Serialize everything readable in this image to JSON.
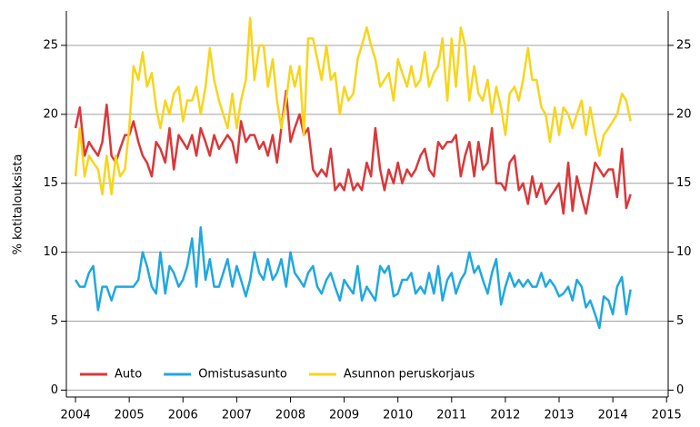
{
  "chart_data": {
    "type": "line",
    "y_label": "% kotitalouksista",
    "x": [
      2004.0,
      2004.08,
      2004.17,
      2004.25,
      2004.33,
      2004.42,
      2004.5,
      2004.58,
      2004.67,
      2004.75,
      2004.83,
      2004.92,
      2005.0,
      2005.08,
      2005.17,
      2005.25,
      2005.33,
      2005.42,
      2005.5,
      2005.58,
      2005.67,
      2005.75,
      2005.83,
      2005.92,
      2006.0,
      2006.08,
      2006.17,
      2006.25,
      2006.33,
      2006.42,
      2006.5,
      2006.58,
      2006.67,
      2006.75,
      2006.83,
      2006.92,
      2007.0,
      2007.08,
      2007.17,
      2007.25,
      2007.33,
      2007.42,
      2007.5,
      2007.58,
      2007.67,
      2007.75,
      2007.83,
      2007.92,
      2008.0,
      2008.08,
      2008.17,
      2008.25,
      2008.33,
      2008.42,
      2008.5,
      2008.58,
      2008.67,
      2008.75,
      2008.83,
      2008.92,
      2009.0,
      2009.08,
      2009.17,
      2009.25,
      2009.33,
      2009.42,
      2009.5,
      2009.58,
      2009.67,
      2009.75,
      2009.83,
      2009.92,
      2010.0,
      2010.08,
      2010.17,
      2010.25,
      2010.33,
      2010.42,
      2010.5,
      2010.58,
      2010.67,
      2010.75,
      2010.83,
      2010.92,
      2011.0,
      2011.08,
      2011.17,
      2011.25,
      2011.33,
      2011.42,
      2011.5,
      2011.58,
      2011.67,
      2011.75,
      2011.83,
      2011.92,
      2012.0,
      2012.08,
      2012.17,
      2012.25,
      2012.33,
      2012.42,
      2012.5,
      2012.58,
      2012.67,
      2012.75,
      2012.83,
      2012.92,
      2013.0,
      2013.08,
      2013.17,
      2013.25,
      2013.33,
      2013.42,
      2013.5,
      2013.58,
      2013.67,
      2013.75,
      2013.83,
      2013.92,
      2014.0,
      2014.08,
      2014.17,
      2014.25,
      2014.33
    ],
    "series": [
      {
        "name": "Auto",
        "color": "#d9383a",
        "values": [
          19,
          20.5,
          17,
          18,
          17.5,
          17,
          18,
          20.7,
          17,
          16.5,
          17.5,
          18.5,
          18.5,
          19.5,
          18,
          17,
          16.5,
          15.5,
          18,
          17.5,
          16.5,
          19,
          16,
          18.5,
          18,
          17.5,
          18.5,
          17,
          19,
          18,
          17,
          18.5,
          17.5,
          18,
          18.5,
          18,
          16.5,
          19.5,
          18,
          18.5,
          18.5,
          17.5,
          18,
          17,
          18.5,
          16.5,
          19,
          21.7,
          18,
          19,
          20,
          18.5,
          19,
          16,
          15.5,
          16,
          15.5,
          17.5,
          14.5,
          15,
          14.5,
          16,
          14.5,
          15,
          14.5,
          16.5,
          15.5,
          19,
          16,
          14.5,
          16,
          15,
          16.5,
          15,
          16,
          15.5,
          16,
          17,
          17.5,
          16,
          15.5,
          18,
          17.5,
          18,
          18,
          18.5,
          15.5,
          17,
          18,
          15.5,
          18,
          16,
          16.5,
          19,
          15,
          15,
          14.5,
          16.5,
          17,
          14.5,
          15,
          13.5,
          15.5,
          14,
          15,
          13.5,
          14,
          14.5,
          15,
          12.8,
          16.5,
          13,
          15.5,
          14,
          12.8,
          14.5,
          16.5,
          16,
          15.5,
          16,
          16,
          14,
          17.5,
          13.2,
          14.2
        ]
      },
      {
        "name": "Omistusasunto",
        "color": "#1fa8e0",
        "values": [
          8,
          7.5,
          7.5,
          8.5,
          9,
          5.8,
          7.5,
          7.5,
          6.5,
          7.5,
          7.5,
          7.5,
          7.5,
          7.5,
          8,
          10,
          9,
          7.5,
          7,
          10,
          7,
          9,
          8.5,
          7.5,
          8,
          9,
          11,
          7.5,
          11.8,
          8,
          9.5,
          7.5,
          7.5,
          8.5,
          9.5,
          7.5,
          9,
          8,
          6.8,
          8,
          10,
          8.5,
          8,
          9.5,
          8,
          8.5,
          9.5,
          7.5,
          10,
          8.5,
          8,
          7.5,
          8.5,
          9,
          7.5,
          7,
          8,
          8.5,
          7.5,
          6.5,
          8,
          7.5,
          7,
          9,
          6.5,
          7.5,
          7,
          6.5,
          9,
          8.5,
          9,
          6.8,
          7,
          8,
          8,
          8.5,
          7,
          7.5,
          7,
          8.5,
          7,
          9,
          6.5,
          8,
          8.5,
          7,
          8,
          8.5,
          10,
          8.5,
          9,
          8,
          7,
          8.5,
          9.5,
          6.2,
          7.5,
          8.5,
          7.5,
          8,
          7.5,
          8,
          7.5,
          7.5,
          8.5,
          7.5,
          8,
          7.5,
          6.8,
          7,
          7.5,
          6.5,
          8,
          7.5,
          6,
          6.5,
          5.5,
          4.5,
          6.8,
          6.5,
          5.5,
          7.5,
          8.2,
          5.5,
          7.3
        ]
      },
      {
        "name": "Asunnon peruskorjaus",
        "color": "#f7d51d",
        "values": [
          15.5,
          19,
          15.5,
          17,
          16.5,
          16,
          14.2,
          17,
          14.2,
          17,
          15.5,
          16,
          19,
          23.5,
          22.5,
          24.5,
          22,
          23,
          20.5,
          19,
          21,
          20,
          21.5,
          22,
          19.5,
          21,
          21,
          22,
          20,
          22,
          24.8,
          22.5,
          21,
          20,
          19,
          21.5,
          19,
          21,
          22.5,
          27,
          22.5,
          25,
          25,
          22,
          24,
          21,
          19,
          21,
          23.5,
          22,
          23.5,
          18.5,
          25.5,
          25.5,
          24,
          22.5,
          25,
          22.5,
          23,
          20,
          22,
          21,
          21.5,
          24,
          25,
          26.3,
          25,
          24,
          22,
          22.5,
          23,
          21,
          24,
          23,
          22,
          23.5,
          22,
          22.5,
          24.5,
          22,
          23,
          23.5,
          25.5,
          21,
          25.5,
          22,
          26.3,
          25,
          21,
          23.5,
          21.5,
          21,
          22.5,
          20,
          22,
          20.5,
          18.5,
          21.5,
          22,
          21,
          22.5,
          24.8,
          22.5,
          22.5,
          20.5,
          20,
          18,
          20.5,
          18.5,
          20.5,
          20,
          19,
          20,
          21,
          18.5,
          20.5,
          18.5,
          17,
          18.5,
          19,
          19.5,
          20,
          21.5,
          21,
          19.5
        ]
      }
    ],
    "xlim": [
      2003.83,
      2015.03
    ],
    "xticks": [
      2004,
      2005,
      2006,
      2007,
      2008,
      2009,
      2010,
      2011,
      2012,
      2013,
      2014,
      2015
    ],
    "ylim": [
      -0.5,
      27.5
    ],
    "yticks": [
      0,
      5,
      10,
      15,
      20,
      25
    ],
    "y2lim": [
      -0.5,
      27.5
    ],
    "y2ticks": [
      0,
      5,
      10,
      15,
      20,
      25
    ],
    "grid": true,
    "legend": "lower left"
  }
}
